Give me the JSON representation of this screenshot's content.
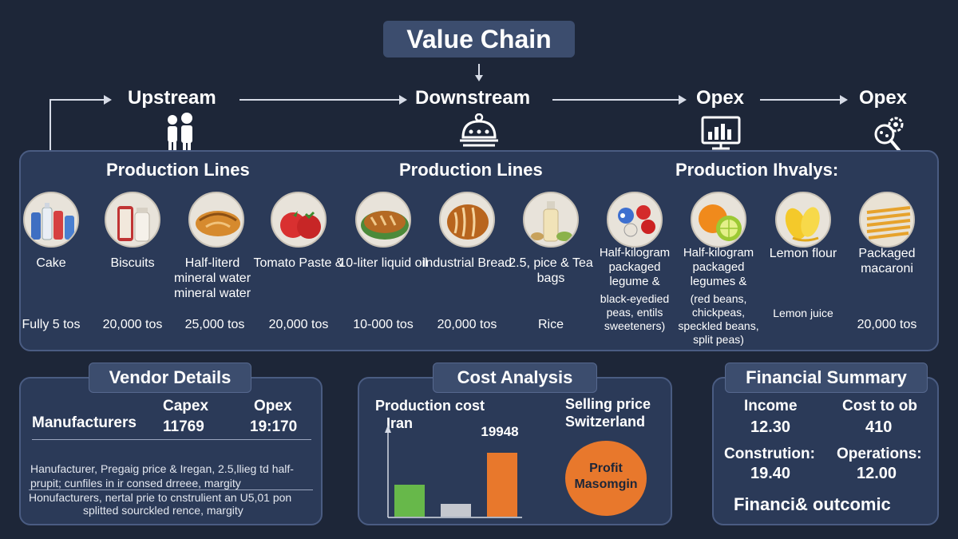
{
  "title": "Value Chain",
  "flow": {
    "stages": [
      {
        "label": "Upstream",
        "icon": "people-icon"
      },
      {
        "label": "Downstream",
        "icon": "cloche-icon"
      },
      {
        "label": "Opex",
        "icon": "monitor-chart-icon"
      },
      {
        "label": "Opex",
        "icon": "gear-search-icon"
      }
    ]
  },
  "production_panel": {
    "section_titles": [
      "Production Lines",
      "Production Lines",
      "Production Ihvalys:"
    ],
    "products": [
      {
        "name": "Cake",
        "qty": "Fully 5 tos",
        "icon": "bottles-icon"
      },
      {
        "name": "Biscuits",
        "qty": "20,000 tos",
        "icon": "jars-icon"
      },
      {
        "name": "Half-literd mineral water mineral water",
        "qty": "25,000 tos",
        "icon": "bread-roll-icon"
      },
      {
        "name": "Tomato Paste &",
        "qty": "20,000 tos",
        "icon": "tomato-icon"
      },
      {
        "name": "10-liter liquid oil",
        "qty": "10-000 tos",
        "icon": "bread-loaf-icon"
      },
      {
        "name": "Industrial Bread",
        "qty": "20,000 tos",
        "icon": "bread-icon"
      },
      {
        "name": "2.5, pice & Tea bags",
        "qty": "Rice",
        "icon": "oil-bottle-icon"
      },
      {
        "name": "Half-kilogram packaged legume &",
        "qty": "black-eyedied peas, entils sweeteners)",
        "icon": "berries-icon"
      },
      {
        "name": "Half-kilogram packaged legumes &",
        "qty": "(red beans, chickpeas, speckled beans, split peas)",
        "icon": "citrus-icon"
      },
      {
        "name": "Lemon flour",
        "qty": "Lemon juice",
        "icon": "lemon-icon"
      },
      {
        "name": "Packaged macaroni",
        "qty": "20,000 tos",
        "icon": "pasta-icon"
      }
    ]
  },
  "vendor": {
    "title": "Vendor Details",
    "col_capex": "Capex",
    "col_opex": "Opex",
    "row_label": "Manufacturers",
    "capex_value": "11769",
    "opex_value": "19:170",
    "notes": [
      "Hanufacturer, Pregaig price & Iregan, 2.5,llieg td half-",
      "prupit; cunfiles in ir consed drreee, margity",
      "Honufacturers, nertal prie to cnstrulient an U5,01 pon",
      "splitted sourckled rence, margity"
    ]
  },
  "cost": {
    "title": "Cost Analysis",
    "production_label": "Production cost",
    "production_sub": "Iran",
    "selling_label": "Selling price",
    "selling_sub": "Switzerland",
    "bar_value_label": "19948",
    "profit_label": "Profit Masomgin",
    "colors": {
      "green": "#67b84a",
      "gray": "#c4c7ce",
      "orange": "#e8782c"
    }
  },
  "chart_data": {
    "type": "bar",
    "categories": [
      "",
      "",
      ""
    ],
    "values": [
      40,
      16,
      80
    ],
    "colors": [
      "#67b84a",
      "#c4c7ce",
      "#e8782c"
    ],
    "ylim": [
      0,
      100
    ],
    "annotations": [
      "19948"
    ]
  },
  "financial": {
    "title": "Financial Summary",
    "items": [
      {
        "label": "Income",
        "value": "12.30"
      },
      {
        "label": "Cost to ob",
        "value": "410"
      },
      {
        "label": "Constrution:",
        "value": "19.40"
      },
      {
        "label": "Operations:",
        "value": "12.00"
      }
    ],
    "footer": "Financi& outcomic"
  }
}
